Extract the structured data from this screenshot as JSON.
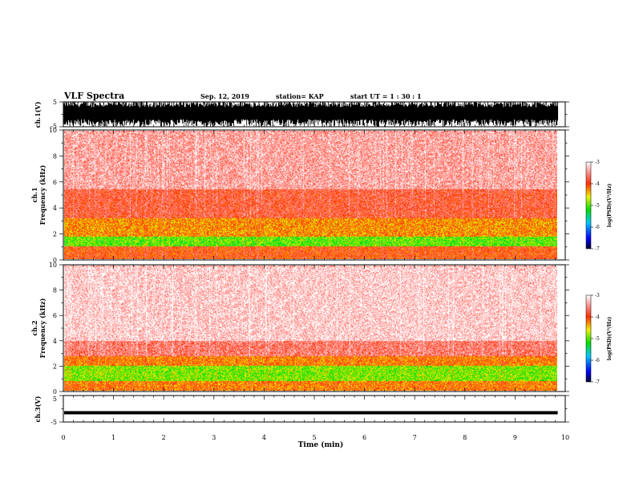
{
  "header": {
    "title": "VLF Spectra",
    "date": "Sep. 12, 2019",
    "station": "station= KAP",
    "start": "start  UT =   1 : 30 : 1"
  },
  "chart_data": [
    {
      "type": "line",
      "panel": "ch1-waveform",
      "ylabel": "ch.1(V)",
      "ylim": [
        -5,
        5
      ],
      "y_ticks": [
        "5",
        "-5"
      ],
      "xlim": [
        0,
        10
      ],
      "data_end_min": 9.85,
      "description_values": {
        "signal_range_v": [
          -5,
          5
        ]
      }
    },
    {
      "type": "heatmap",
      "panel": "ch1-spectrogram",
      "ylabel": "ch.1 Frequency (kHz)",
      "ylabel_lines": [
        "ch.1",
        "Frequency  (kHz)"
      ],
      "ylim": [
        0,
        10
      ],
      "y_ticks": [
        "0",
        "2",
        "4",
        "6",
        "8",
        "10"
      ],
      "xlim": [
        0,
        10
      ],
      "data_end_min": 9.85,
      "colorbar": {
        "label": "log(PSD)(V²/Hz)",
        "ticks": [
          "-3",
          "-4",
          "-5",
          "-6",
          "-7"
        ],
        "range": [
          -7,
          -3
        ]
      },
      "bands_khz": [
        {
          "from": 0,
          "to": 1.0,
          "level": -4.0
        },
        {
          "from": 1.0,
          "to": 1.8,
          "level": -5.0
        },
        {
          "from": 1.8,
          "to": 3.2,
          "level": -4.3
        },
        {
          "from": 3.2,
          "to": 5.5,
          "level": -3.8
        },
        {
          "from": 5.5,
          "to": 10,
          "level": -3.4
        }
      ]
    },
    {
      "type": "heatmap",
      "panel": "ch2-spectrogram",
      "ylabel": "ch.2 Frequency (kHz)",
      "ylabel_lines": [
        "ch.2",
        "Frequency  (kHz)"
      ],
      "ylim": [
        0,
        10
      ],
      "y_ticks": [
        "0",
        "2",
        "4",
        "6",
        "8",
        "10"
      ],
      "xlim": [
        0,
        10
      ],
      "data_end_min": 9.85,
      "colorbar": {
        "label": "log(PSD)(V²/Hz)",
        "ticks": [
          "-3",
          "-4",
          "-5",
          "-6",
          "-7"
        ],
        "range": [
          -7,
          -3
        ]
      },
      "bands_khz": [
        {
          "from": 0,
          "to": 0.8,
          "level": -4.2
        },
        {
          "from": 0.8,
          "to": 2.0,
          "level": -4.9
        },
        {
          "from": 2.0,
          "to": 2.8,
          "level": -4.2
        },
        {
          "from": 2.8,
          "to": 4.0,
          "level": -3.6
        },
        {
          "from": 4.0,
          "to": 10,
          "level": -3.2
        }
      ]
    },
    {
      "type": "line",
      "panel": "ch3-waveform",
      "ylabel": "ch.3(V)",
      "ylim": [
        -5,
        5
      ],
      "y_ticks": [
        "5",
        "-5"
      ],
      "xlim": [
        0,
        10
      ],
      "x_ticks": [
        "0",
        "1",
        "2",
        "3",
        "4",
        "5",
        "6",
        "7",
        "8",
        "9",
        "10"
      ],
      "xlabel": "Time  (min)",
      "data_end_min": 9.85,
      "description_values": {
        "level_v": -1.5
      }
    }
  ]
}
